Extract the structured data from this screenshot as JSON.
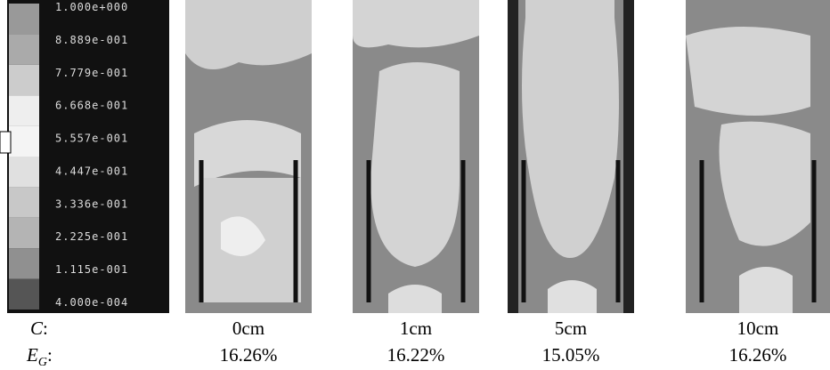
{
  "colorbar": {
    "labels": [
      "1.000e+000",
      "8.889e-001",
      "7.779e-001",
      "6.668e-001",
      "5.557e-001",
      "4.447e-001",
      "3.336e-001",
      "2.225e-001",
      "1.115e-001",
      "4.000e-004"
    ]
  },
  "row_labels": {
    "c": {
      "symbol": "C",
      "suffix": ":"
    },
    "eg": {
      "symbol": "E",
      "subscript": "G",
      "suffix": ":"
    }
  },
  "panels": [
    {
      "label": "0cm",
      "efficiency": "16.26%"
    },
    {
      "label": "1cm",
      "efficiency": "16.22%"
    },
    {
      "label": "5cm",
      "efficiency": "15.05%"
    },
    {
      "label": "10cm",
      "efficiency": "16.26%"
    }
  ]
}
